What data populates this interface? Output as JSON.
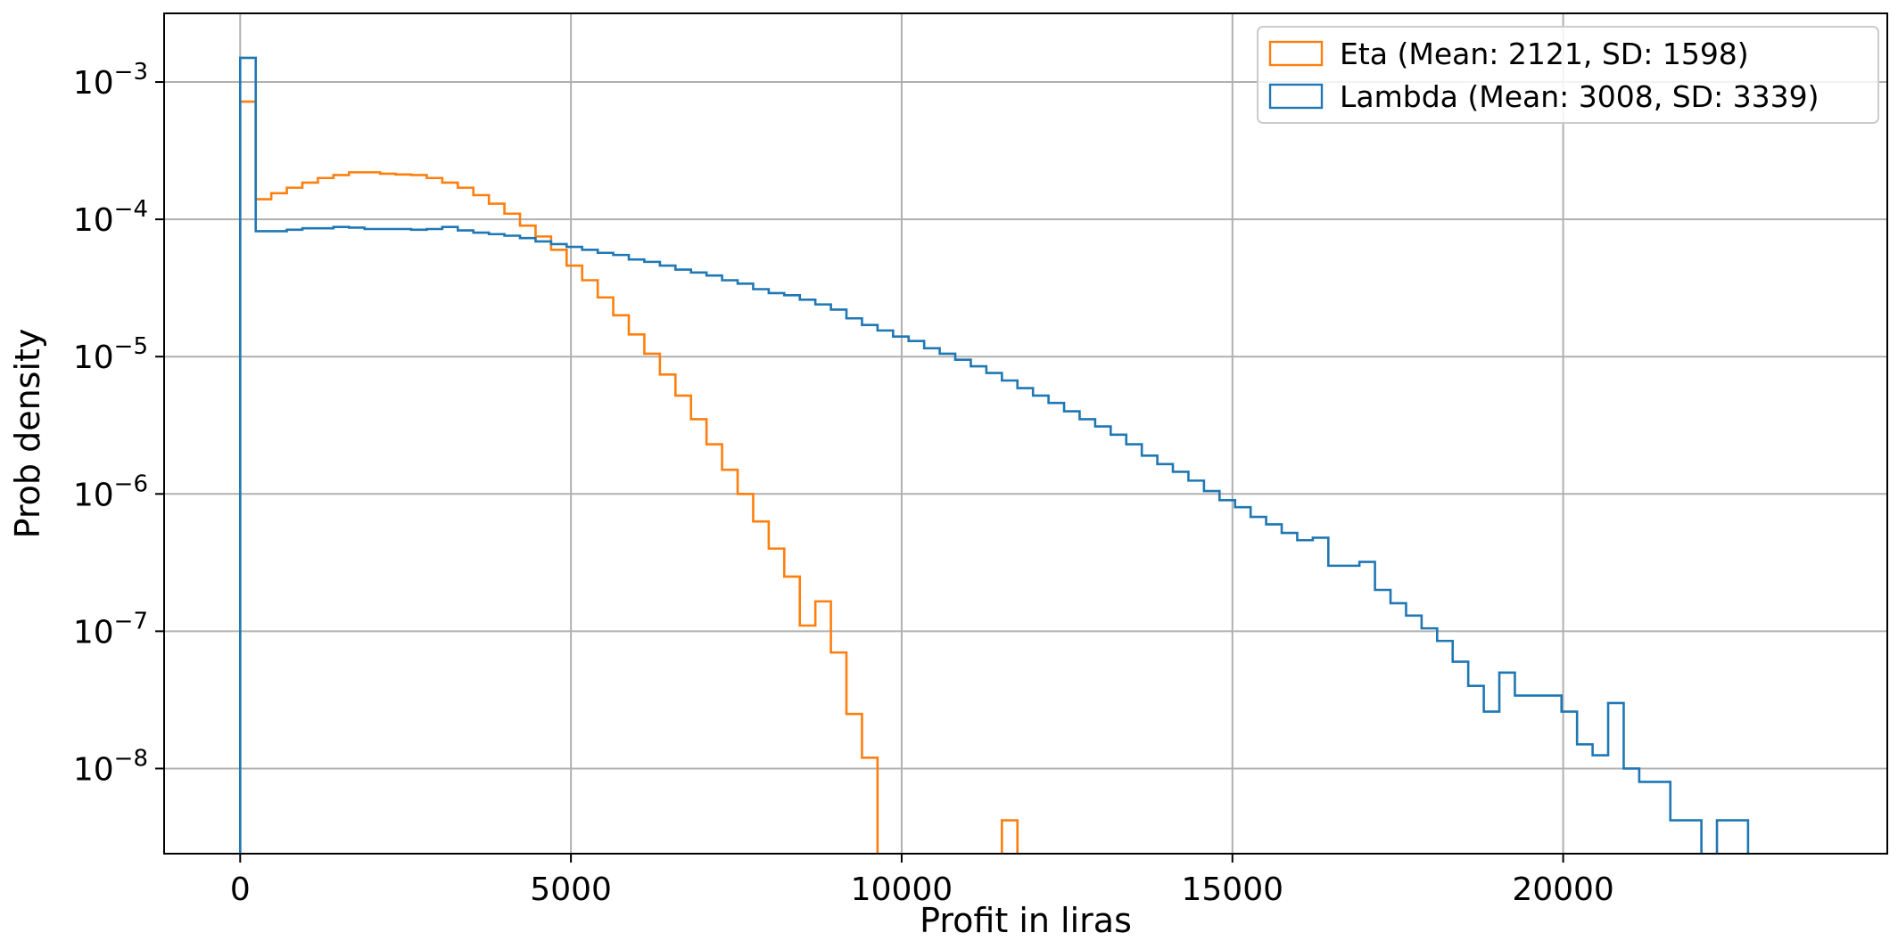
{
  "chart_data": {
    "type": "histogram",
    "xlabel": "Profit in liras",
    "ylabel": "Prob density",
    "xlim": [
      -1150,
      24900
    ],
    "ylim_log10": [
      -8.62,
      -2.5
    ],
    "y_scale": "log",
    "grid": true,
    "legend_position": "upper right",
    "x_ticks": [
      0,
      5000,
      10000,
      15000,
      20000
    ],
    "x_tick_labels": [
      "0",
      "5000",
      "10000",
      "15000",
      "20000"
    ],
    "y_ticks_exp": [
      -8,
      -7,
      -6,
      -5,
      -4,
      -3
    ],
    "y_tick_base": "10",
    "y_tick_exponents": [
      "−8",
      "−7",
      "−6",
      "−5",
      "−4",
      "−3"
    ],
    "bin_start": 0,
    "bin_width": 235,
    "series": [
      {
        "name": "Eta (Mean: 2121, SD: 1598)",
        "color": "#ff7f0e",
        "values": [
          0.00072,
          0.00014,
          0.000155,
          0.00017,
          0.000185,
          0.0002,
          0.00021,
          0.00022,
          0.00022,
          0.000215,
          0.000212,
          0.00021,
          0.0002,
          0.000185,
          0.00017,
          0.00015,
          0.00013,
          0.00011,
          9e-05,
          7.5e-05,
          6e-05,
          4.6e-05,
          3.6e-05,
          2.7e-05,
          2e-05,
          1.45e-05,
          1.05e-05,
          7.4e-06,
          5.2e-06,
          3.5e-06,
          2.3e-06,
          1.5e-06,
          1e-06,
          6.3e-07,
          4e-07,
          2.5e-07,
          1.1e-07,
          1.65e-07,
          7e-08,
          2.5e-08,
          1.2e-08,
          0,
          0,
          0,
          0,
          0,
          0,
          0,
          0,
          4.2e-09
        ],
        "end_x": 11610
      },
      {
        "name": "Lambda (Mean: 3008, SD: 3339)",
        "color": "#1f77b4",
        "values": [
          0.0015,
          8.2e-05,
          8.2e-05,
          8.4e-05,
          8.6e-05,
          8.6e-05,
          8.8e-05,
          8.7e-05,
          8.5e-05,
          8.5e-05,
          8.5e-05,
          8.4e-05,
          8.5e-05,
          8.8e-05,
          8.3e-05,
          8e-05,
          7.8e-05,
          7.6e-05,
          7.3e-05,
          6.9e-05,
          6.6e-05,
          6.3e-05,
          6e-05,
          5.7e-05,
          5.5e-05,
          5.1e-05,
          4.9e-05,
          4.6e-05,
          4.3e-05,
          4.1e-05,
          3.9e-05,
          3.6e-05,
          3.4e-05,
          3.1e-05,
          2.9e-05,
          2.8e-05,
          2.6e-05,
          2.4e-05,
          2.2e-05,
          1.9e-05,
          1.7e-05,
          1.55e-05,
          1.4e-05,
          1.3e-05,
          1.15e-05,
          1.05e-05,
          9.5e-06,
          8.5e-06,
          7.6e-06,
          6.7e-06,
          5.9e-06,
          5.2e-06,
          4.6e-06,
          4e-06,
          3.5e-06,
          3.1e-06,
          2.7e-06,
          2.3e-06,
          1.9e-06,
          1.65e-06,
          1.45e-06,
          1.25e-06,
          1.05e-06,
          9e-07,
          8e-07,
          6.8e-07,
          6e-07,
          5.2e-07,
          4.6e-07,
          4.8e-07,
          3e-07,
          3e-07,
          3.2e-07,
          2e-07,
          1.6e-07,
          1.3e-07,
          1.05e-07,
          8.5e-08,
          6e-08,
          4e-08,
          2.6e-08,
          5e-08,
          3.4e-08,
          3.4e-08,
          3.4e-08,
          2.6e-08,
          1.5e-08,
          1.25e-08,
          3e-08,
          1e-08,
          8e-09,
          8e-09,
          4.2e-09,
          4.2e-09,
          0,
          4.2e-09,
          4.2e-09
        ],
        "end_x": 23200
      }
    ]
  }
}
